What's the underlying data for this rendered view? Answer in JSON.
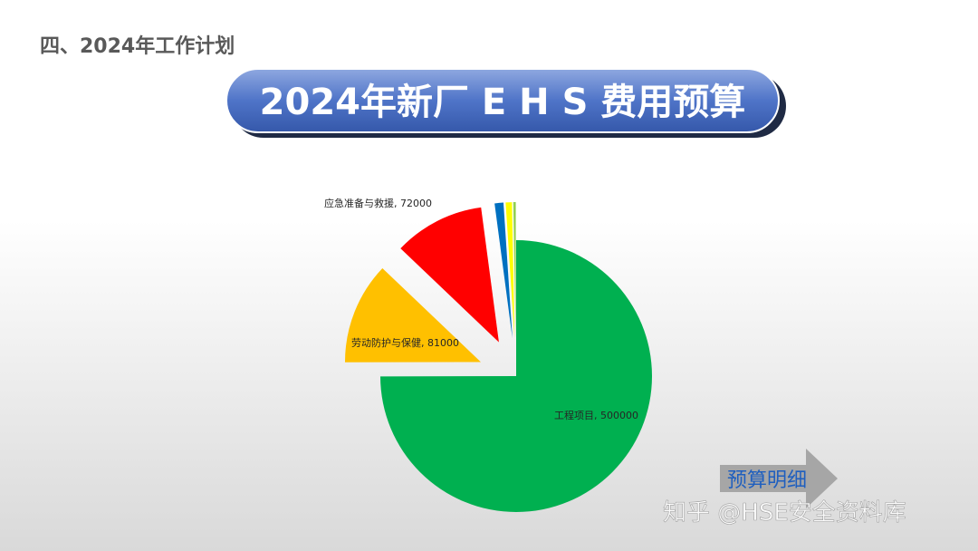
{
  "header": {
    "title": "四、2024年工作计划",
    "banner": "2024年新厂 E H S 费用预算"
  },
  "chart_data": {
    "type": "pie",
    "values": [
      500000,
      81000,
      72000,
      7000,
      5000,
      2000
    ],
    "value_labels": [
      "工程项目, 500000",
      "劳动防护与保健, 81000",
      "应急准备与救援, 72000",
      null,
      null,
      null
    ],
    "colors": [
      "#00b050",
      "#ffc000",
      "#ff0000",
      "#0070c0",
      "#ffff00",
      "#92d050"
    ],
    "exploded": [
      false,
      true,
      true,
      true,
      true,
      true
    ]
  },
  "button": {
    "label": "预算明细"
  },
  "watermark": "知乎 @HSE安全资料库"
}
